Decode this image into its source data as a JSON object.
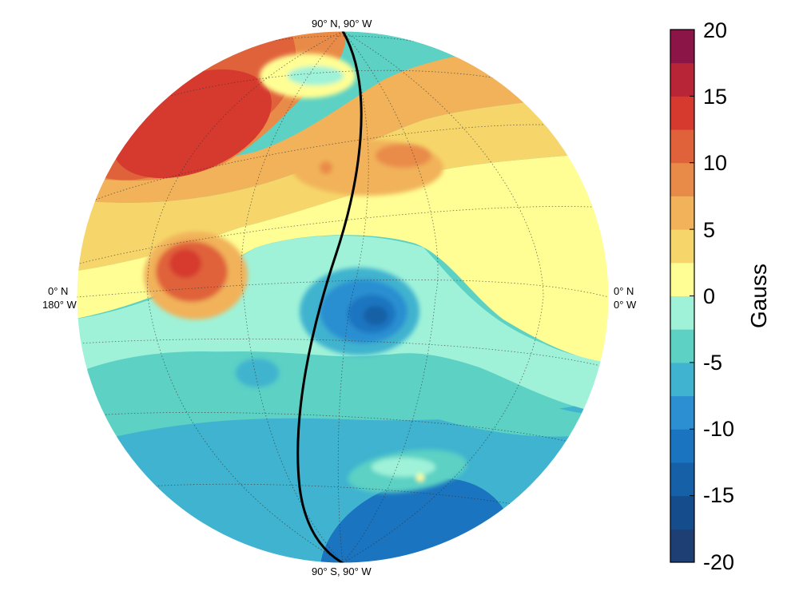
{
  "chart_data": {
    "type": "heatmap",
    "projection": "orthographic globe",
    "title": "",
    "colorbar": {
      "label": "Gauss",
      "range": [
        -20,
        20
      ],
      "tick_labels": [
        "20",
        "15",
        "10",
        "5",
        "0",
        "-5",
        "-10",
        "-15",
        "-20"
      ],
      "tick_values": [
        20,
        15,
        10,
        5,
        0,
        -5,
        -10,
        -15,
        -20
      ],
      "colors": [
        "#1d3f73",
        "#154d8c",
        "#1560a6",
        "#1a74c0",
        "#2b8fd1",
        "#3fb3cf",
        "#5cd1c4",
        "#9ff2d8",
        "#fefe94",
        "#f6d66a",
        "#f1b25a",
        "#e98b48",
        "#e0623b",
        "#d63a2f",
        "#b82536",
        "#8a1546"
      ]
    },
    "map_labels": {
      "top": "90° N, 90° W",
      "bottom": "90° S, 90° W",
      "left_line1": "0° N",
      "left_line2": "180° W",
      "right_line1": "0° N",
      "right_line2": "0° W"
    },
    "regions": [
      {
        "name": "north-west strong positive",
        "value": 14
      },
      {
        "name": "south-east strong negative",
        "value": -13
      },
      {
        "name": "central negative",
        "value": -10
      },
      {
        "name": "eastern hemisphere weak positive",
        "value": 1
      }
    ],
    "line": {
      "name": "90° W meridian",
      "color": "#000000"
    }
  }
}
